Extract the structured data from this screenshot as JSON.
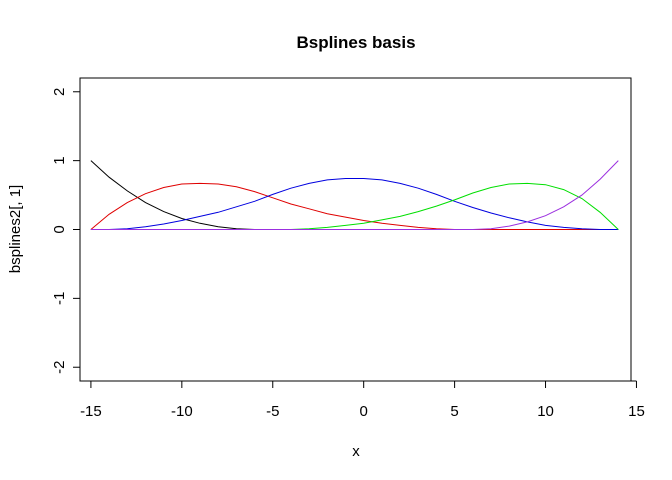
{
  "chart_data": {
    "type": "line",
    "title": "Bsplines basis",
    "xlabel": "x",
    "ylabel": "bsplines2[, 1]",
    "xlim": [
      -15.6,
      14.7
    ],
    "ylim": [
      -2.2,
      2.2
    ],
    "xticks": [
      -15,
      -10,
      -5,
      0,
      5,
      10,
      15
    ],
    "yticks": [
      -2,
      -1,
      0,
      1,
      2
    ],
    "grid": false,
    "legend": "none",
    "series": [
      {
        "color": "#000000",
        "x": [
          -15,
          -14,
          -13,
          -12,
          -11,
          -10,
          -9,
          -8,
          -7,
          -6,
          -5,
          -4,
          -3,
          -2,
          -1,
          0,
          1,
          2,
          3,
          4,
          5,
          6,
          7,
          8,
          9,
          10,
          11,
          12,
          13,
          14
        ],
        "values": [
          1.0,
          0.76,
          0.56,
          0.39,
          0.26,
          0.16,
          0.09,
          0.04,
          0.01,
          0.0,
          0.0,
          0.0,
          0.0,
          0.0,
          0.0,
          0.0,
          0.0,
          0.0,
          0.0,
          0.0,
          0.0,
          0.0,
          0.0,
          0.0,
          0.0,
          0.0,
          0.0,
          0.0,
          0.0,
          0.0
        ]
      },
      {
        "color": "#df0000",
        "x": [
          -15,
          -14,
          -13,
          -12,
          -11,
          -10,
          -9,
          -8,
          -7,
          -6,
          -5,
          -4,
          -3,
          -2,
          -1,
          0,
          1,
          2,
          3,
          4,
          5,
          6,
          7,
          8,
          9,
          10,
          11,
          12,
          13,
          14
        ],
        "values": [
          0.0,
          0.22,
          0.39,
          0.52,
          0.61,
          0.66,
          0.67,
          0.66,
          0.62,
          0.55,
          0.46,
          0.37,
          0.3,
          0.23,
          0.18,
          0.13,
          0.09,
          0.06,
          0.03,
          0.01,
          0.0,
          0.0,
          0.0,
          0.0,
          0.0,
          0.0,
          0.0,
          0.0,
          0.0,
          0.0
        ]
      },
      {
        "color": "#0000df",
        "x": [
          -15,
          -14,
          -13,
          -12,
          -11,
          -10,
          -9,
          -8,
          -7,
          -6,
          -5,
          -4,
          -3,
          -2,
          -1,
          0,
          1,
          2,
          3,
          4,
          5,
          6,
          7,
          8,
          9,
          10,
          11,
          12,
          13,
          14
        ],
        "values": [
          0.0,
          0.0,
          0.01,
          0.04,
          0.08,
          0.13,
          0.19,
          0.25,
          0.33,
          0.41,
          0.51,
          0.6,
          0.67,
          0.72,
          0.74,
          0.74,
          0.72,
          0.67,
          0.6,
          0.51,
          0.41,
          0.32,
          0.24,
          0.17,
          0.11,
          0.06,
          0.03,
          0.01,
          0.0,
          0.0
        ]
      },
      {
        "color": "#00df00",
        "x": [
          -15,
          -14,
          -13,
          -12,
          -11,
          -10,
          -9,
          -8,
          -7,
          -6,
          -5,
          -4,
          -3,
          -2,
          -1,
          0,
          1,
          2,
          3,
          4,
          5,
          6,
          7,
          8,
          9,
          10,
          11,
          12,
          13,
          14
        ],
        "values": [
          0.0,
          0.0,
          0.0,
          0.0,
          0.0,
          0.0,
          0.0,
          0.0,
          0.0,
          0.0,
          0.0,
          0.0,
          0.01,
          0.03,
          0.06,
          0.09,
          0.14,
          0.19,
          0.26,
          0.34,
          0.43,
          0.53,
          0.61,
          0.66,
          0.67,
          0.65,
          0.58,
          0.45,
          0.25,
          0.0
        ]
      },
      {
        "color": "#9b2fdf",
        "x": [
          -15,
          -14,
          -13,
          -12,
          -11,
          -10,
          -9,
          -8,
          -7,
          -6,
          -5,
          -4,
          -3,
          -2,
          -1,
          0,
          1,
          2,
          3,
          4,
          5,
          6,
          7,
          8,
          9,
          10,
          11,
          12,
          13,
          14
        ],
        "values": [
          0.0,
          0.0,
          0.0,
          0.0,
          0.0,
          0.0,
          0.0,
          0.0,
          0.0,
          0.0,
          0.0,
          0.0,
          0.0,
          0.0,
          0.0,
          0.0,
          0.0,
          0.0,
          0.0,
          0.0,
          0.0,
          0.0,
          0.01,
          0.05,
          0.11,
          0.2,
          0.33,
          0.5,
          0.73,
          1.0
        ]
      }
    ]
  }
}
